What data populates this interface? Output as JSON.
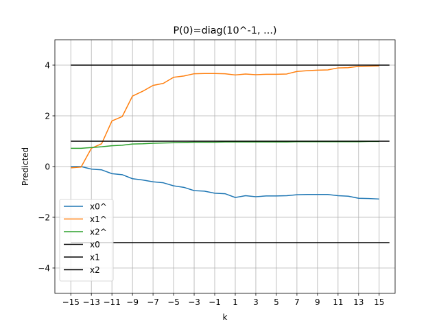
{
  "chart_data": {
    "type": "line",
    "title": "P(0)=diag(10^-1, ...)",
    "xlabel": "k",
    "ylabel": "Predicted",
    "xlim": [
      -16.55,
      16.55
    ],
    "ylim": [
      -5,
      5
    ],
    "xticks": [
      -15,
      -13,
      -11,
      -9,
      -7,
      -5,
      -3,
      -1,
      1,
      3,
      5,
      7,
      9,
      11,
      13,
      15
    ],
    "yticks": [
      -4,
      -2,
      0,
      2,
      4
    ],
    "grid": true,
    "legend": "lower-left",
    "series": [
      {
        "name": "x0^",
        "color": "#1f77b4",
        "x": [
          -15,
          -14,
          -13,
          -12,
          -11,
          -10,
          -9,
          -8,
          -7,
          -6,
          -5,
          -4,
          -3,
          -2,
          -1,
          0,
          1,
          2,
          3,
          4,
          5,
          6,
          7,
          8,
          9,
          10,
          11,
          12,
          13,
          14,
          15
        ],
        "y": [
          0.0,
          0.0,
          -0.1,
          -0.13,
          -0.28,
          -0.32,
          -0.48,
          -0.53,
          -0.6,
          -0.64,
          -0.76,
          -0.82,
          -0.95,
          -0.97,
          -1.05,
          -1.07,
          -1.22,
          -1.15,
          -1.19,
          -1.16,
          -1.16,
          -1.15,
          -1.11,
          -1.1,
          -1.1,
          -1.1,
          -1.15,
          -1.17,
          -1.25,
          -1.26,
          -1.28
        ]
      },
      {
        "name": "x1^",
        "color": "#ff7f0e",
        "x": [
          -15,
          -14,
          -13,
          -12,
          -11,
          -10,
          -9,
          -8,
          -7,
          -6,
          -5,
          -4,
          -3,
          -2,
          -1,
          0,
          1,
          2,
          3,
          4,
          5,
          6,
          7,
          8,
          9,
          10,
          11,
          12,
          13,
          14,
          15
        ],
        "y": [
          -0.05,
          -0.02,
          0.72,
          0.9,
          1.8,
          1.97,
          2.78,
          2.97,
          3.2,
          3.28,
          3.52,
          3.57,
          3.66,
          3.67,
          3.67,
          3.66,
          3.61,
          3.65,
          3.62,
          3.64,
          3.64,
          3.65,
          3.75,
          3.78,
          3.8,
          3.81,
          3.89,
          3.9,
          3.95,
          3.96,
          3.97
        ]
      },
      {
        "name": "x2^",
        "color": "#2ca02c",
        "x": [
          -15,
          -14,
          -13,
          -12,
          -11,
          -10,
          -9,
          -8,
          -7,
          -6,
          -5,
          -4,
          -3,
          -2,
          -1,
          0,
          1,
          2,
          3,
          4,
          5,
          6,
          7,
          8,
          9,
          10,
          11,
          12,
          13,
          14,
          15
        ],
        "y": [
          0.72,
          0.72,
          0.75,
          0.78,
          0.82,
          0.84,
          0.89,
          0.9,
          0.92,
          0.93,
          0.94,
          0.95,
          0.96,
          0.96,
          0.96,
          0.97,
          0.97,
          0.97,
          0.97,
          0.97,
          0.97,
          0.97,
          0.98,
          0.98,
          0.98,
          0.98,
          0.98,
          0.98,
          0.98,
          0.99,
          0.99
        ]
      },
      {
        "name": "x0",
        "color": "#000000",
        "x": [
          -15,
          16
        ],
        "y": [
          -3,
          -3
        ]
      },
      {
        "name": "x1",
        "color": "#000000",
        "x": [
          -15,
          16
        ],
        "y": [
          4,
          4
        ]
      },
      {
        "name": "x2",
        "color": "#000000",
        "x": [
          -15,
          16
        ],
        "y": [
          1,
          1
        ]
      }
    ]
  }
}
